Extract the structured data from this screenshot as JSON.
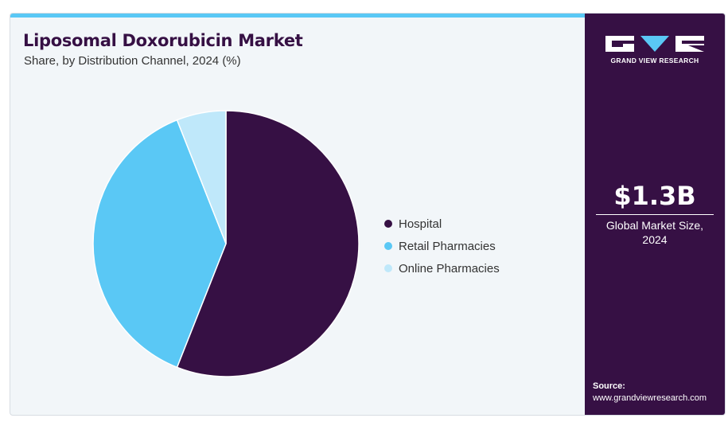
{
  "header": {
    "title": "Liposomal Doxorubicin Market",
    "subtitle": "Share, by Distribution Channel, 2024 (%)"
  },
  "chart_data": {
    "type": "pie",
    "title": "Liposomal Doxorubicin Market",
    "subtitle": "Share, by Distribution Channel, 2024 (%)",
    "categories": [
      "Hospital",
      "Retail Pharmacies",
      "Online Pharmacies"
    ],
    "values": [
      56,
      38,
      6
    ],
    "colors": [
      "#361044",
      "#5ac8f5",
      "#bfe8fa"
    ],
    "legend_position": "right"
  },
  "legend": {
    "items": [
      {
        "label": "Hospital",
        "color": "#361044"
      },
      {
        "label": "Retail Pharmacies",
        "color": "#5ac8f5"
      },
      {
        "label": "Online Pharmacies",
        "color": "#bfe8fa"
      }
    ]
  },
  "sidebar": {
    "brand": "GRAND VIEW RESEARCH",
    "value": "$1.3B",
    "caption": "Global Market Size, 2024",
    "source_label": "Source:",
    "source_url": "www.grandviewresearch.com"
  },
  "colors": {
    "brand_dark": "#361044",
    "accent": "#5ac8f5",
    "accent_light": "#bfe8fa",
    "panel_bg": "#f2f6f9"
  }
}
